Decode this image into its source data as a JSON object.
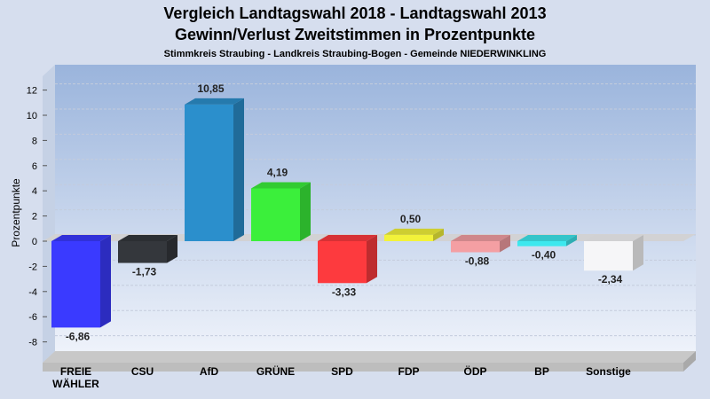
{
  "chart_data": {
    "type": "bar",
    "title": [
      "Vergleich Landtagswahl 2018 - Landtagswahl 2013",
      "Gewinn/Verlust Zweitstimmen in Prozentpunkte"
    ],
    "subtitle": "Stimmkreis Straubing - Landkreis Straubing-Bogen - Gemeinde NIEDERWINKLING",
    "ylabel": "Prozentpunkte",
    "xlabel": "",
    "ylim": [
      -10,
      14
    ],
    "yticks": [
      12,
      10,
      8,
      6,
      4,
      2,
      0,
      -2,
      -4,
      -6,
      -8
    ],
    "grid": true,
    "categories": [
      [
        "FREIE",
        "WÄHLER"
      ],
      [
        "CSU"
      ],
      [
        "AfD"
      ],
      [
        "GRÜNE"
      ],
      [
        "SPD"
      ],
      [
        "FDP"
      ],
      [
        "ÖDP"
      ],
      [
        "BP"
      ],
      [
        "Sonstige"
      ]
    ],
    "values": [
      -6.86,
      -1.73,
      10.85,
      4.19,
      -3.33,
      0.5,
      -0.88,
      -0.4,
      -2.34
    ],
    "value_labels": [
      "-6,86",
      "-1,73",
      "10,85",
      "4,19",
      "-3,33",
      "0,50",
      "-0,88",
      "-0,40",
      "-2,34"
    ],
    "colors": [
      "#3a3aff",
      "#34373c",
      "#2b8fcc",
      "#3bef3b",
      "#fd3a3e",
      "#f2f23a",
      "#f49fa3",
      "#3de8ee",
      "#f6f6f8"
    ]
  }
}
